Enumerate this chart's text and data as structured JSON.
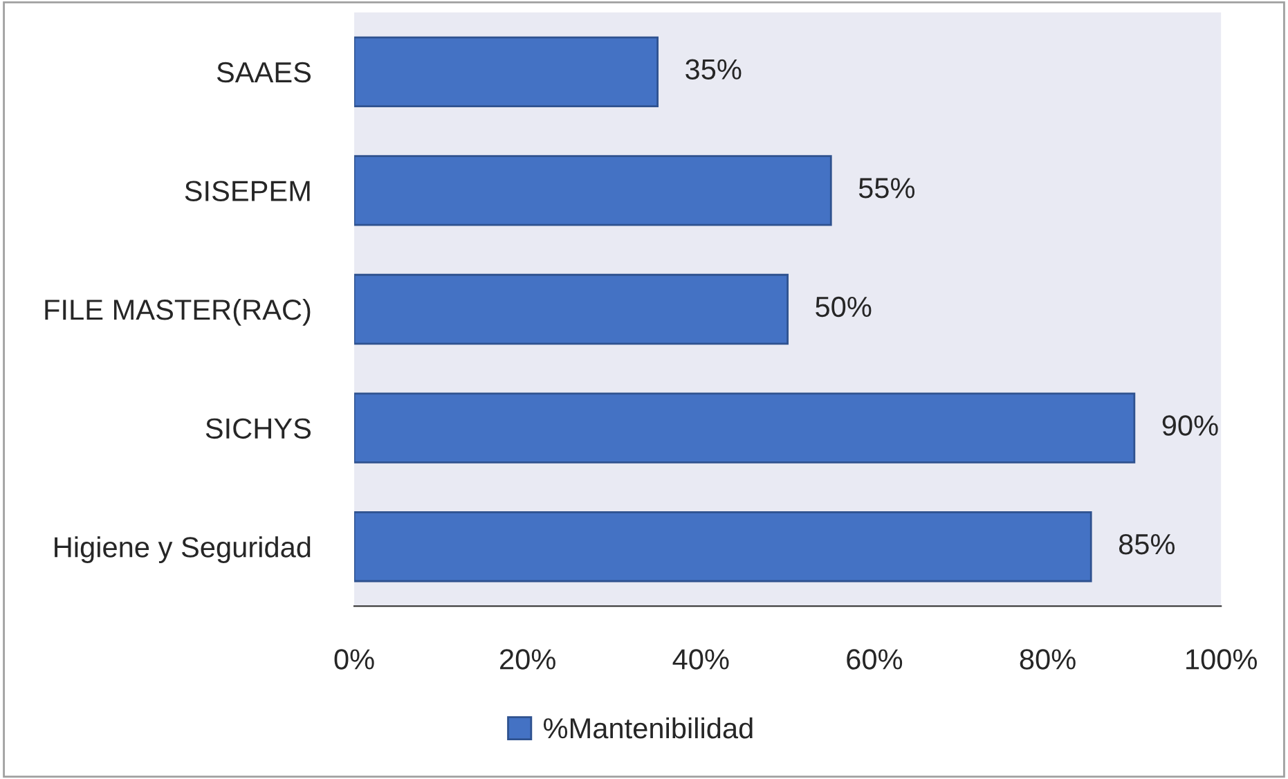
{
  "chart_data": {
    "type": "bar",
    "orientation": "horizontal",
    "categories": [
      "SAAES",
      "SISEPEM",
      "FILE MASTER(RAC)",
      "SICHYS",
      "Higiene y Seguridad"
    ],
    "series": [
      {
        "name": "%Mantenibilidad",
        "color": "#4472c4",
        "values": [
          35,
          55,
          50,
          90,
          85
        ],
        "value_labels": [
          "35%",
          "55%",
          "50%",
          "90%",
          "85%"
        ]
      }
    ],
    "xlim": [
      0,
      100
    ],
    "xticks": [
      {
        "value": 0,
        "label": "0%"
      },
      {
        "value": 20,
        "label": "20%"
      },
      {
        "value": 40,
        "label": "40%"
      },
      {
        "value": 60,
        "label": "60%"
      },
      {
        "value": 80,
        "label": "80%"
      },
      {
        "value": 100,
        "label": "100%"
      }
    ],
    "grid": false,
    "legend": "bottom"
  }
}
